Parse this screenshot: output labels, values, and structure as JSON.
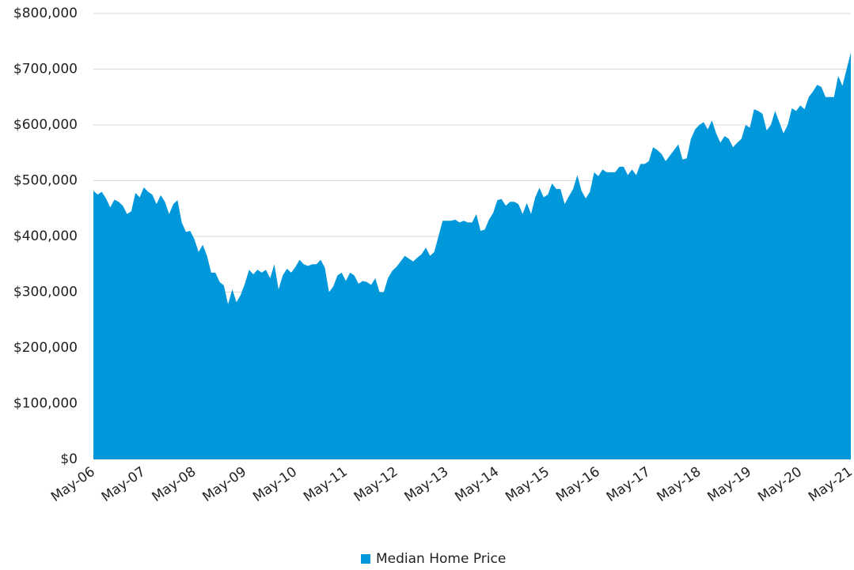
{
  "chart_data": {
    "type": "area",
    "categories": [
      "May-06",
      null,
      null,
      null,
      null,
      null,
      null,
      null,
      null,
      null,
      null,
      null,
      "May-07",
      null,
      null,
      null,
      null,
      null,
      null,
      null,
      null,
      null,
      null,
      null,
      "May-08",
      null,
      null,
      null,
      null,
      null,
      null,
      null,
      null,
      null,
      null,
      null,
      "May-09",
      null,
      null,
      null,
      null,
      null,
      null,
      null,
      null,
      null,
      null,
      null,
      "May-10",
      null,
      null,
      null,
      null,
      null,
      null,
      null,
      null,
      null,
      null,
      null,
      "May-11",
      null,
      null,
      null,
      null,
      null,
      null,
      null,
      null,
      null,
      null,
      null,
      "May-12",
      null,
      null,
      null,
      null,
      null,
      null,
      null,
      null,
      null,
      null,
      null,
      "May-13",
      null,
      null,
      null,
      null,
      null,
      null,
      null,
      null,
      null,
      null,
      null,
      "May-14",
      null,
      null,
      null,
      null,
      null,
      null,
      null,
      null,
      null,
      null,
      null,
      "May-15",
      null,
      null,
      null,
      null,
      null,
      null,
      null,
      null,
      null,
      null,
      null,
      "May-16",
      null,
      null,
      null,
      null,
      null,
      null,
      null,
      null,
      null,
      null,
      null,
      "May-17",
      null,
      null,
      null,
      null,
      null,
      null,
      null,
      null,
      null,
      null,
      null,
      "May-18",
      null,
      null,
      null,
      null,
      null,
      null,
      null,
      null,
      null,
      null,
      null,
      "May-19",
      null,
      null,
      null,
      null,
      null,
      null,
      null,
      null,
      null,
      null,
      null,
      "May-20",
      null,
      null,
      null,
      null,
      null,
      null,
      null,
      null,
      null,
      null,
      null,
      "May-21"
    ],
    "series": [
      {
        "name": "Median Home Price",
        "color": "#0098da",
        "values": [
          482000,
          475000,
          480000,
          468000,
          452000,
          466000,
          462000,
          455000,
          440000,
          445000,
          478000,
          470000,
          488000,
          480000,
          475000,
          458000,
          474000,
          462000,
          440000,
          458000,
          465000,
          425000,
          408000,
          410000,
          395000,
          372000,
          385000,
          365000,
          335000,
          335000,
          318000,
          312000,
          278000,
          305000,
          282000,
          295000,
          315000,
          340000,
          332000,
          340000,
          335000,
          340000,
          325000,
          350000,
          305000,
          330000,
          342000,
          335000,
          345000,
          358000,
          350000,
          347000,
          350000,
          350000,
          358000,
          344000,
          300000,
          310000,
          330000,
          335000,
          320000,
          335000,
          330000,
          315000,
          320000,
          318000,
          313000,
          325000,
          300000,
          300000,
          325000,
          338000,
          345000,
          355000,
          365000,
          360000,
          355000,
          362000,
          368000,
          380000,
          365000,
          372000,
          400000,
          428000,
          428000,
          428000,
          430000,
          425000,
          428000,
          425000,
          425000,
          440000,
          410000,
          412000,
          430000,
          442000,
          465000,
          467000,
          455000,
          462000,
          462000,
          458000,
          440000,
          460000,
          440000,
          470000,
          487000,
          470000,
          475000,
          495000,
          485000,
          485000,
          458000,
          472000,
          485000,
          510000,
          482000,
          468000,
          480000,
          515000,
          508000,
          520000,
          515000,
          515000,
          515000,
          525000,
          525000,
          510000,
          520000,
          510000,
          530000,
          530000,
          535000,
          560000,
          555000,
          548000,
          535000,
          545000,
          555000,
          565000,
          538000,
          540000,
          575000,
          592000,
          600000,
          605000,
          592000,
          608000,
          585000,
          568000,
          580000,
          575000,
          560000,
          568000,
          575000,
          600000,
          595000,
          628000,
          625000,
          620000,
          590000,
          600000,
          625000,
          605000,
          585000,
          600000,
          630000,
          625000,
          635000,
          628000,
          650000,
          660000,
          672000,
          668000,
          650000,
          650000,
          650000,
          688000,
          670000,
          700000,
          730000
        ]
      }
    ],
    "ylim": [
      0,
      800000
    ],
    "yticks": [
      {
        "value": 0,
        "label": "$0"
      },
      {
        "value": 100000,
        "label": "$100,000"
      },
      {
        "value": 200000,
        "label": "$200,000"
      },
      {
        "value": 300000,
        "label": "$300,000"
      },
      {
        "value": 400000,
        "label": "$400,000"
      },
      {
        "value": 500000,
        "label": "$500,000"
      },
      {
        "value": 600000,
        "label": "$600,000"
      },
      {
        "value": 700000,
        "label": "$700,000"
      },
      {
        "value": 800000,
        "label": "$800,000"
      }
    ],
    "grid": true,
    "legend": "bottom"
  }
}
